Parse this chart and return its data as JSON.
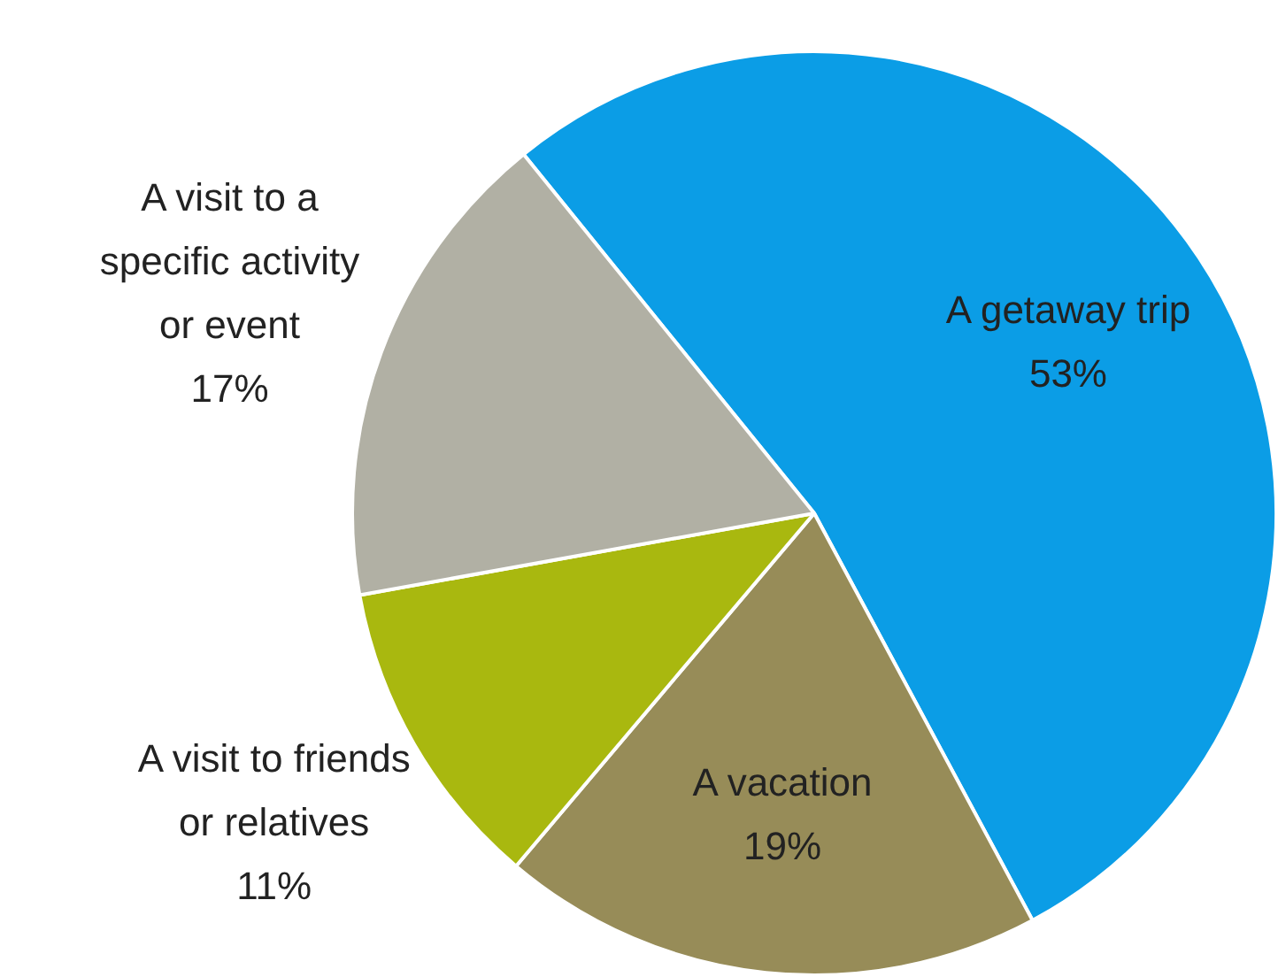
{
  "chart_data": {
    "type": "pie",
    "categories": [
      "A getaway trip",
      "A vacation",
      "A visit to friends or relatives",
      "A visit to a specific activity or event"
    ],
    "values": [
      53,
      19,
      11,
      17
    ],
    "colors": [
      "#0b9de6",
      "#978c58",
      "#a9b80f",
      "#b1b0a4"
    ],
    "value_labels": [
      "53%",
      "19%",
      "11%",
      "17%"
    ],
    "legend": false
  }
}
